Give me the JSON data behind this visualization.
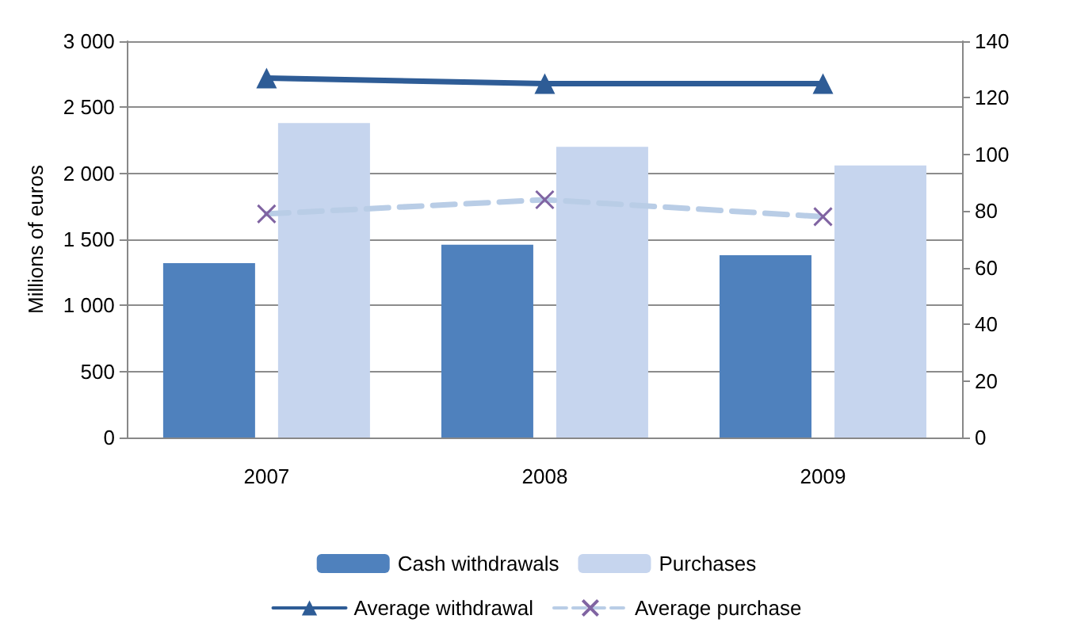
{
  "chart_data": {
    "type": "bar",
    "categories": [
      "2007",
      "2008",
      "2009"
    ],
    "ylabel": "Millions of euros",
    "ylim": [
      0,
      3000
    ],
    "yticks": [
      {
        "value": 0,
        "label": "0"
      },
      {
        "value": 500,
        "label": "500"
      },
      {
        "value": 1000,
        "label": "1 000"
      },
      {
        "value": 1500,
        "label": "1 500"
      },
      {
        "value": 2000,
        "label": "2 000"
      },
      {
        "value": 2500,
        "label": "2 500"
      },
      {
        "value": 3000,
        "label": "3 000"
      }
    ],
    "y2lim": [
      0,
      140
    ],
    "y2ticks": [
      0,
      20,
      40,
      60,
      80,
      100,
      120,
      140
    ],
    "grid": "y",
    "legend": "bottom",
    "series": [
      {
        "name": "Cash withdrawals",
        "color": "#4f81bd",
        "values": [
          1320,
          1460,
          1380
        ]
      },
      {
        "name": "Purchases",
        "color": "#c6d5ee",
        "values": [
          2380,
          2200,
          2060
        ]
      },
      {
        "name": "Average withdrawal",
        "type": "line",
        "axis": "y2",
        "color": "#2e5c96",
        "marker": "triangle",
        "line_style": "solid",
        "values": [
          127,
          125,
          125
        ]
      },
      {
        "name": "Average purchase",
        "type": "line",
        "axis": "y2",
        "color": "#b9cde6",
        "marker": "cross",
        "line_style": "dashed",
        "values": [
          79,
          84,
          78
        ]
      }
    ]
  }
}
